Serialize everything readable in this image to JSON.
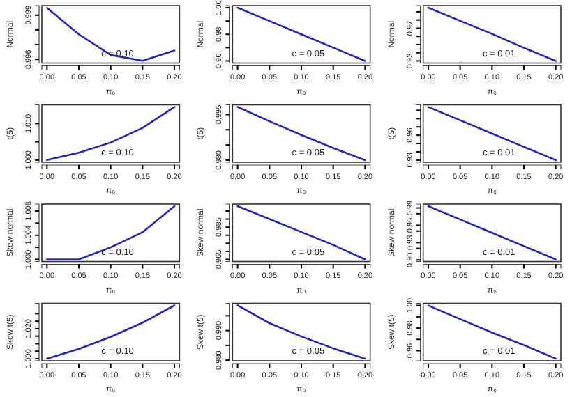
{
  "chart_data": [
    {
      "type": "line",
      "xlabel": "π₀",
      "ylabel": "Normal",
      "annotations": [
        "c = 0.10"
      ],
      "x": [
        0,
        0.05,
        0.1,
        0.15,
        0.2
      ],
      "series": [
        {
          "color": "#2323c8",
          "values": [
            0.9995,
            0.9977,
            0.9963,
            0.9959,
            0.9966
          ]
        }
      ],
      "xlim": [
        -0.008,
        0.208
      ],
      "xticks": [
        {
          "value": 0,
          "label": "0.00"
        },
        {
          "value": 0.05,
          "label": "0.05"
        },
        {
          "value": 0.1,
          "label": "0.10"
        },
        {
          "value": 0.15,
          "label": "0.15"
        },
        {
          "value": 0.2,
          "label": "0.20"
        }
      ],
      "ylim": [
        0.99575,
        0.99965
      ],
      "yticks": [
        {
          "value": 0.996,
          "label": "0.996"
        },
        {
          "value": 0.997,
          "label": null
        },
        {
          "value": 0.998,
          "label": null
        },
        {
          "value": 0.999,
          "label": "0.999"
        }
      ]
    },
    {
      "type": "line",
      "xlabel": "π₀",
      "ylabel": "Normal",
      "annotations": [
        "c = 0.05"
      ],
      "x": [
        0,
        0.05,
        0.1,
        0.15,
        0.2
      ],
      "series": [
        {
          "color": "#2323c8",
          "values": [
            1.0,
            0.99,
            0.98,
            0.97,
            0.96
          ]
        }
      ],
      "xlim": [
        -0.008,
        0.208
      ],
      "xticks": [
        {
          "value": 0,
          "label": "0.00"
        },
        {
          "value": 0.05,
          "label": "0.05"
        },
        {
          "value": 0.1,
          "label": "0.10"
        },
        {
          "value": 0.15,
          "label": "0.15"
        },
        {
          "value": 0.2,
          "label": "0.20"
        }
      ],
      "ylim": [
        0.9584,
        1.0016
      ],
      "yticks": [
        {
          "value": 0.96,
          "label": "0.96"
        },
        {
          "value": 0.97,
          "label": null
        },
        {
          "value": 0.98,
          "label": "0.98"
        },
        {
          "value": 0.99,
          "label": null
        },
        {
          "value": 1.0,
          "label": "1.00"
        }
      ]
    },
    {
      "type": "line",
      "xlabel": "π₀",
      "ylabel": "Normal",
      "annotations": [
        "c = 0.01"
      ],
      "x": [
        0,
        0.05,
        0.1,
        0.15,
        0.2
      ],
      "series": [
        {
          "color": "#2323c8",
          "values": [
            0.995,
            0.979,
            0.963,
            0.946,
            0.93
          ]
        }
      ],
      "xlim": [
        -0.008,
        0.208
      ],
      "xticks": [
        {
          "value": 0,
          "label": "0.00"
        },
        {
          "value": 0.05,
          "label": "0.05"
        },
        {
          "value": 0.1,
          "label": "0.10"
        },
        {
          "value": 0.15,
          "label": "0.15"
        },
        {
          "value": 0.2,
          "label": "0.20"
        }
      ],
      "ylim": [
        0.9274,
        0.9976
      ],
      "yticks": [
        {
          "value": 0.93,
          "label": "0.93"
        },
        {
          "value": 0.94,
          "label": null
        },
        {
          "value": 0.95,
          "label": null
        },
        {
          "value": 0.96,
          "label": null
        },
        {
          "value": 0.97,
          "label": "0.97"
        },
        {
          "value": 0.98,
          "label": null
        },
        {
          "value": 0.99,
          "label": null
        }
      ]
    },
    {
      "type": "line",
      "xlabel": "π₀",
      "ylabel": "t(5)",
      "annotations": [
        "c = 0.10"
      ],
      "x": [
        0,
        0.05,
        0.1,
        0.15,
        0.2
      ],
      "series": [
        {
          "color": "#2323c8",
          "values": [
            1.0,
            1.002,
            1.0048,
            1.0088,
            1.0145
          ]
        }
      ],
      "xlim": [
        -0.008,
        0.208
      ],
      "xticks": [
        {
          "value": 0,
          "label": "0.00"
        },
        {
          "value": 0.05,
          "label": "0.05"
        },
        {
          "value": 0.1,
          "label": "0.10"
        },
        {
          "value": 0.15,
          "label": "0.15"
        },
        {
          "value": 0.2,
          "label": "0.20"
        }
      ],
      "ylim": [
        0.9994,
        1.0151
      ],
      "yticks": [
        {
          "value": 1.0,
          "label": "1.000"
        },
        {
          "value": 1.005,
          "label": null
        },
        {
          "value": 1.01,
          "label": "1.010"
        }
      ]
    },
    {
      "type": "line",
      "xlabel": "π₀",
      "ylabel": "t(5)",
      "annotations": [
        "c = 0.05"
      ],
      "x": [
        0,
        0.05,
        0.1,
        0.15,
        0.2
      ],
      "series": [
        {
          "color": "#2323c8",
          "values": [
            0.9975,
            0.9928,
            0.9883,
            0.984,
            0.98
          ]
        }
      ],
      "xlim": [
        -0.008,
        0.208
      ],
      "xticks": [
        {
          "value": 0,
          "label": "0.00"
        },
        {
          "value": 0.05,
          "label": "0.05"
        },
        {
          "value": 0.1,
          "label": "0.10"
        },
        {
          "value": 0.15,
          "label": "0.15"
        },
        {
          "value": 0.2,
          "label": "0.20"
        }
      ],
      "ylim": [
        0.9793,
        0.9982
      ],
      "yticks": [
        {
          "value": 0.98,
          "label": "0.980"
        },
        {
          "value": 0.985,
          "label": null
        },
        {
          "value": 0.99,
          "label": null
        },
        {
          "value": 0.995,
          "label": "0.995"
        }
      ]
    },
    {
      "type": "line",
      "xlabel": "π₀",
      "ylabel": "t(5)",
      "annotations": [
        "c = 0.01"
      ],
      "x": [
        0,
        0.05,
        0.1,
        0.15,
        0.2
      ],
      "series": [
        {
          "color": "#2323c8",
          "values": [
            0.994,
            0.978,
            0.962,
            0.946,
            0.93
          ]
        }
      ],
      "xlim": [
        -0.008,
        0.208
      ],
      "xticks": [
        {
          "value": 0,
          "label": "0.00"
        },
        {
          "value": 0.05,
          "label": "0.05"
        },
        {
          "value": 0.1,
          "label": "0.10"
        },
        {
          "value": 0.15,
          "label": "0.15"
        },
        {
          "value": 0.2,
          "label": "0.20"
        }
      ],
      "ylim": [
        0.9274,
        0.9966
      ],
      "yticks": [
        {
          "value": 0.93,
          "label": "0.93"
        },
        {
          "value": 0.94,
          "label": null
        },
        {
          "value": 0.95,
          "label": null
        },
        {
          "value": 0.96,
          "label": "0.96"
        },
        {
          "value": 0.97,
          "label": null
        },
        {
          "value": 0.98,
          "label": null
        },
        {
          "value": 0.99,
          "label": null
        }
      ]
    },
    {
      "type": "line",
      "xlabel": "π₀",
      "ylabel": "Skew normal",
      "annotations": [
        "c = 0.10"
      ],
      "x": [
        0,
        0.05,
        0.1,
        0.15,
        0.2
      ],
      "series": [
        {
          "color": "#2323c8",
          "values": [
            1.0,
            1.0,
            1.002,
            1.0045,
            1.0088
          ]
        }
      ],
      "xlim": [
        -0.008,
        0.208
      ],
      "xticks": [
        {
          "value": 0,
          "label": "0.00"
        },
        {
          "value": 0.05,
          "label": "0.05"
        },
        {
          "value": 0.1,
          "label": "0.10"
        },
        {
          "value": 0.15,
          "label": "0.15"
        },
        {
          "value": 0.2,
          "label": "0.20"
        }
      ],
      "ylim": [
        0.99965,
        1.00915
      ],
      "yticks": [
        {
          "value": 1.0,
          "label": "1.000"
        },
        {
          "value": 1.002,
          "label": null
        },
        {
          "value": 1.004,
          "label": "1.004"
        },
        {
          "value": 1.006,
          "label": null
        },
        {
          "value": 1.008,
          "label": "1.008"
        }
      ]
    },
    {
      "type": "line",
      "xlabel": "π₀",
      "ylabel": "Skew normal",
      "annotations": [
        "c = 0.05"
      ],
      "x": [
        0,
        0.05,
        0.1,
        0.15,
        0.2
      ],
      "series": [
        {
          "color": "#2323c8",
          "values": [
            0.998,
            0.99,
            0.982,
            0.974,
            0.965
          ]
        }
      ],
      "xlim": [
        -0.008,
        0.208
      ],
      "xticks": [
        {
          "value": 0,
          "label": "0.00"
        },
        {
          "value": 0.05,
          "label": "0.05"
        },
        {
          "value": 0.1,
          "label": "0.10"
        },
        {
          "value": 0.15,
          "label": "0.15"
        },
        {
          "value": 0.2,
          "label": "0.20"
        }
      ],
      "ylim": [
        0.9637,
        0.9993
      ],
      "yticks": [
        {
          "value": 0.965,
          "label": "0.965"
        },
        {
          "value": 0.97,
          "label": null
        },
        {
          "value": 0.975,
          "label": null
        },
        {
          "value": 0.98,
          "label": null
        },
        {
          "value": 0.985,
          "label": "0.985"
        },
        {
          "value": 0.99,
          "label": null
        },
        {
          "value": 0.995,
          "label": null
        }
      ]
    },
    {
      "type": "line",
      "xlabel": "π₀",
      "ylabel": "Skew normal",
      "annotations": [
        "c = 0.01"
      ],
      "x": [
        0,
        0.05,
        0.1,
        0.15,
        0.2
      ],
      "series": [
        {
          "color": "#2323c8",
          "values": [
            0.993,
            0.97,
            0.947,
            0.924,
            0.901
          ]
        }
      ],
      "xlim": [
        -0.008,
        0.208
      ],
      "xticks": [
        {
          "value": 0,
          "label": "0.00"
        },
        {
          "value": 0.05,
          "label": "0.05"
        },
        {
          "value": 0.1,
          "label": "0.10"
        },
        {
          "value": 0.15,
          "label": "0.15"
        },
        {
          "value": 0.2,
          "label": "0.20"
        }
      ],
      "ylim": [
        0.8973,
        0.9967
      ],
      "yticks": [
        {
          "value": 0.9,
          "label": "0.90"
        },
        {
          "value": 0.92,
          "label": null
        },
        {
          "value": 0.93,
          "label": "0.93"
        },
        {
          "value": 0.95,
          "label": null
        },
        {
          "value": 0.96,
          "label": "0.96"
        },
        {
          "value": 0.98,
          "label": null
        },
        {
          "value": 0.99,
          "label": "0.99"
        }
      ]
    },
    {
      "type": "line",
      "xlabel": "π₀",
      "ylabel": "Skew t(5)",
      "annotations": [
        "c = 0.10"
      ],
      "x": [
        0,
        0.05,
        0.1,
        0.15,
        0.2
      ],
      "series": [
        {
          "color": "#2323c8",
          "values": [
            1.0,
            1.0065,
            1.0145,
            1.024,
            1.0355
          ]
        }
      ],
      "xlim": [
        -0.008,
        0.208
      ],
      "xticks": [
        {
          "value": 0,
          "label": "0.00"
        },
        {
          "value": 0.05,
          "label": "0.05"
        },
        {
          "value": 0.1,
          "label": "0.10"
        },
        {
          "value": 0.15,
          "label": "0.15"
        },
        {
          "value": 0.2,
          "label": "0.20"
        }
      ],
      "ylim": [
        0.9986,
        1.0369
      ],
      "yticks": [
        {
          "value": 1.0,
          "label": "1.000"
        },
        {
          "value": 1.005,
          "label": null
        },
        {
          "value": 1.01,
          "label": null
        },
        {
          "value": 1.015,
          "label": null
        },
        {
          "value": 1.02,
          "label": "1.020"
        },
        {
          "value": 1.025,
          "label": null
        },
        {
          "value": 1.03,
          "label": null
        }
      ]
    },
    {
      "type": "line",
      "xlabel": "π₀",
      "ylabel": "Skew t(5)",
      "annotations": [
        "c = 0.05"
      ],
      "x": [
        0,
        0.05,
        0.1,
        0.15,
        0.2
      ],
      "series": [
        {
          "color": "#2323c8",
          "values": [
            0.9985,
            0.9925,
            0.988,
            0.984,
            0.9805
          ]
        }
      ],
      "xlim": [
        -0.008,
        0.208
      ],
      "xticks": [
        {
          "value": 0,
          "label": "0.00"
        },
        {
          "value": 0.05,
          "label": "0.05"
        },
        {
          "value": 0.1,
          "label": "0.10"
        },
        {
          "value": 0.15,
          "label": "0.15"
        },
        {
          "value": 0.2,
          "label": "0.20"
        }
      ],
      "ylim": [
        0.9798,
        0.9992
      ],
      "yticks": [
        {
          "value": 0.98,
          "label": "0.980"
        },
        {
          "value": 0.985,
          "label": null
        },
        {
          "value": 0.99,
          "label": "0.990"
        },
        {
          "value": 0.995,
          "label": null
        }
      ]
    },
    {
      "type": "line",
      "xlabel": "π₀",
      "ylabel": "Skew t(5)",
      "annotations": [
        "c = 0.01"
      ],
      "x": [
        0,
        0.05,
        0.1,
        0.15,
        0.2
      ],
      "series": [
        {
          "color": "#2323c8",
          "values": [
            1.0,
            0.988,
            0.976,
            0.965,
            0.953
          ]
        }
      ],
      "xlim": [
        -0.008,
        0.208
      ],
      "xticks": [
        {
          "value": 0,
          "label": "0.00"
        },
        {
          "value": 0.05,
          "label": "0.05"
        },
        {
          "value": 0.1,
          "label": "0.10"
        },
        {
          "value": 0.15,
          "label": "0.15"
        },
        {
          "value": 0.2,
          "label": "0.20"
        }
      ],
      "ylim": [
        0.9511,
        1.0019
      ],
      "yticks": [
        {
          "value": 0.96,
          "label": "0.96"
        },
        {
          "value": 0.97,
          "label": null
        },
        {
          "value": 0.98,
          "label": "0.98"
        },
        {
          "value": 0.99,
          "label": null
        },
        {
          "value": 1.0,
          "label": "1.00"
        }
      ]
    }
  ]
}
